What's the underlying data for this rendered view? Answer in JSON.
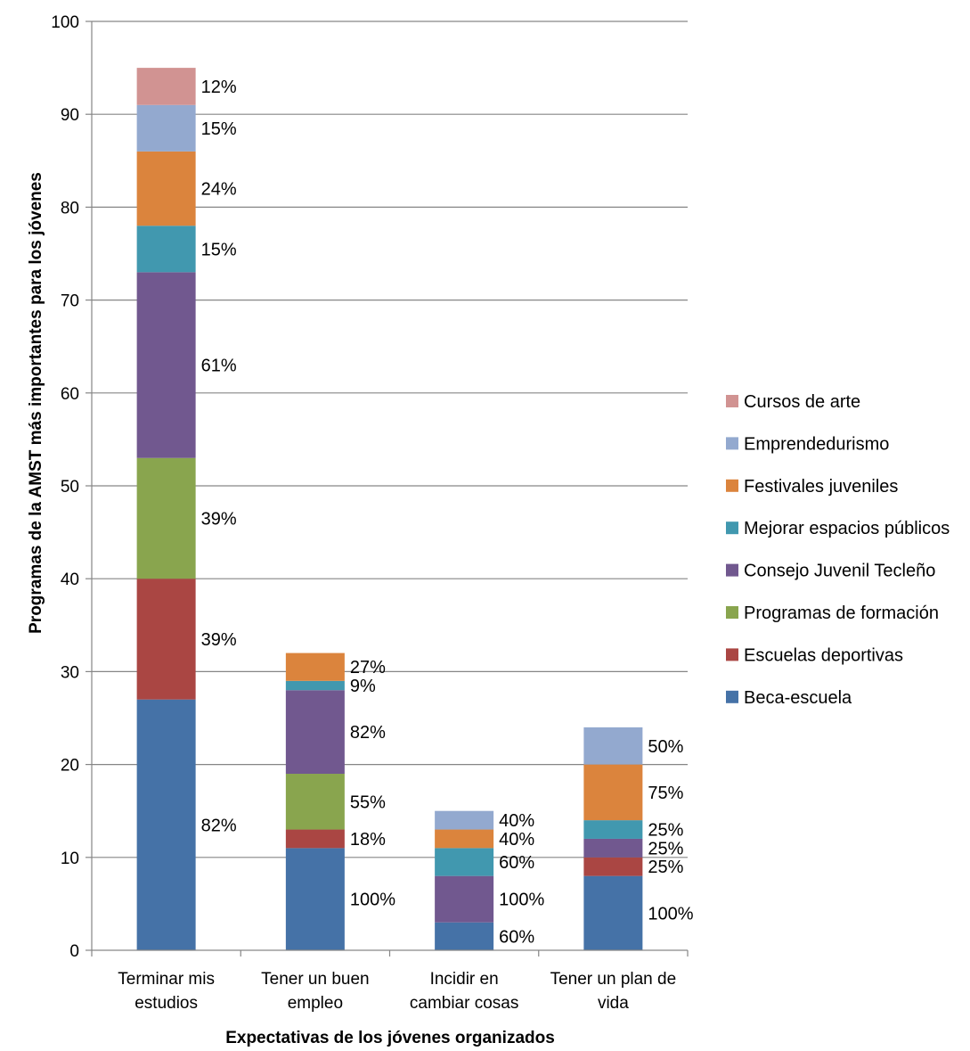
{
  "chart_data": {
    "type": "bar",
    "stacked": true,
    "categories": [
      [
        "Terminar mis",
        "estudios"
      ],
      [
        "Tener un buen",
        "empleo"
      ],
      [
        "Incidir en",
        "cambiar cosas"
      ],
      [
        "Tener un plan de",
        "vida"
      ]
    ],
    "series": [
      {
        "name": "Beca-escuela",
        "color": "#4572A7",
        "values": [
          27,
          11,
          3,
          8
        ],
        "labels": [
          "82%",
          "100%",
          "60%",
          "100%"
        ]
      },
      {
        "name": "Escuelas deportivas",
        "color": "#AA4643",
        "values": [
          13,
          2,
          0,
          2
        ],
        "labels": [
          "39%",
          "18%",
          "",
          "25%"
        ]
      },
      {
        "name": "Programas de formación",
        "color": "#89A54E",
        "values": [
          13,
          6,
          0,
          0
        ],
        "labels": [
          "39%",
          "55%",
          "",
          ""
        ]
      },
      {
        "name": "Consejo Juvenil Tecleño",
        "color": "#71588F",
        "values": [
          20,
          9,
          5,
          2
        ],
        "labels": [
          "61%",
          "82%",
          "100%",
          "25%"
        ]
      },
      {
        "name": "Mejorar espacios públicos",
        "color": "#4198AF",
        "values": [
          5,
          1,
          3,
          2
        ],
        "labels": [
          "15%",
          "9%",
          "60%",
          "25%"
        ]
      },
      {
        "name": "Festivales juveniles",
        "color": "#DB843D",
        "values": [
          8,
          3,
          2,
          6
        ],
        "labels": [
          "24%",
          "27%",
          "40%",
          "75%"
        ]
      },
      {
        "name": "Emprendedurismo",
        "color": "#93A9CF",
        "values": [
          5,
          0,
          2,
          4
        ],
        "labels": [
          "15%",
          "",
          "40%",
          "50%"
        ]
      },
      {
        "name": "Cursos de arte",
        "color": "#D19392",
        "values": [
          4,
          0,
          0,
          0
        ],
        "labels": [
          "12%",
          "",
          "",
          ""
        ]
      }
    ],
    "xlabel": "Expectativas de los jóvenes organizados",
    "ylabel": "Programas de la AMST más importantes para los jóvenes",
    "ylim": [
      0,
      100
    ],
    "yticks": [
      0,
      10,
      20,
      30,
      40,
      50,
      60,
      70,
      80,
      90,
      100
    ],
    "grid": true,
    "legend": "right"
  }
}
